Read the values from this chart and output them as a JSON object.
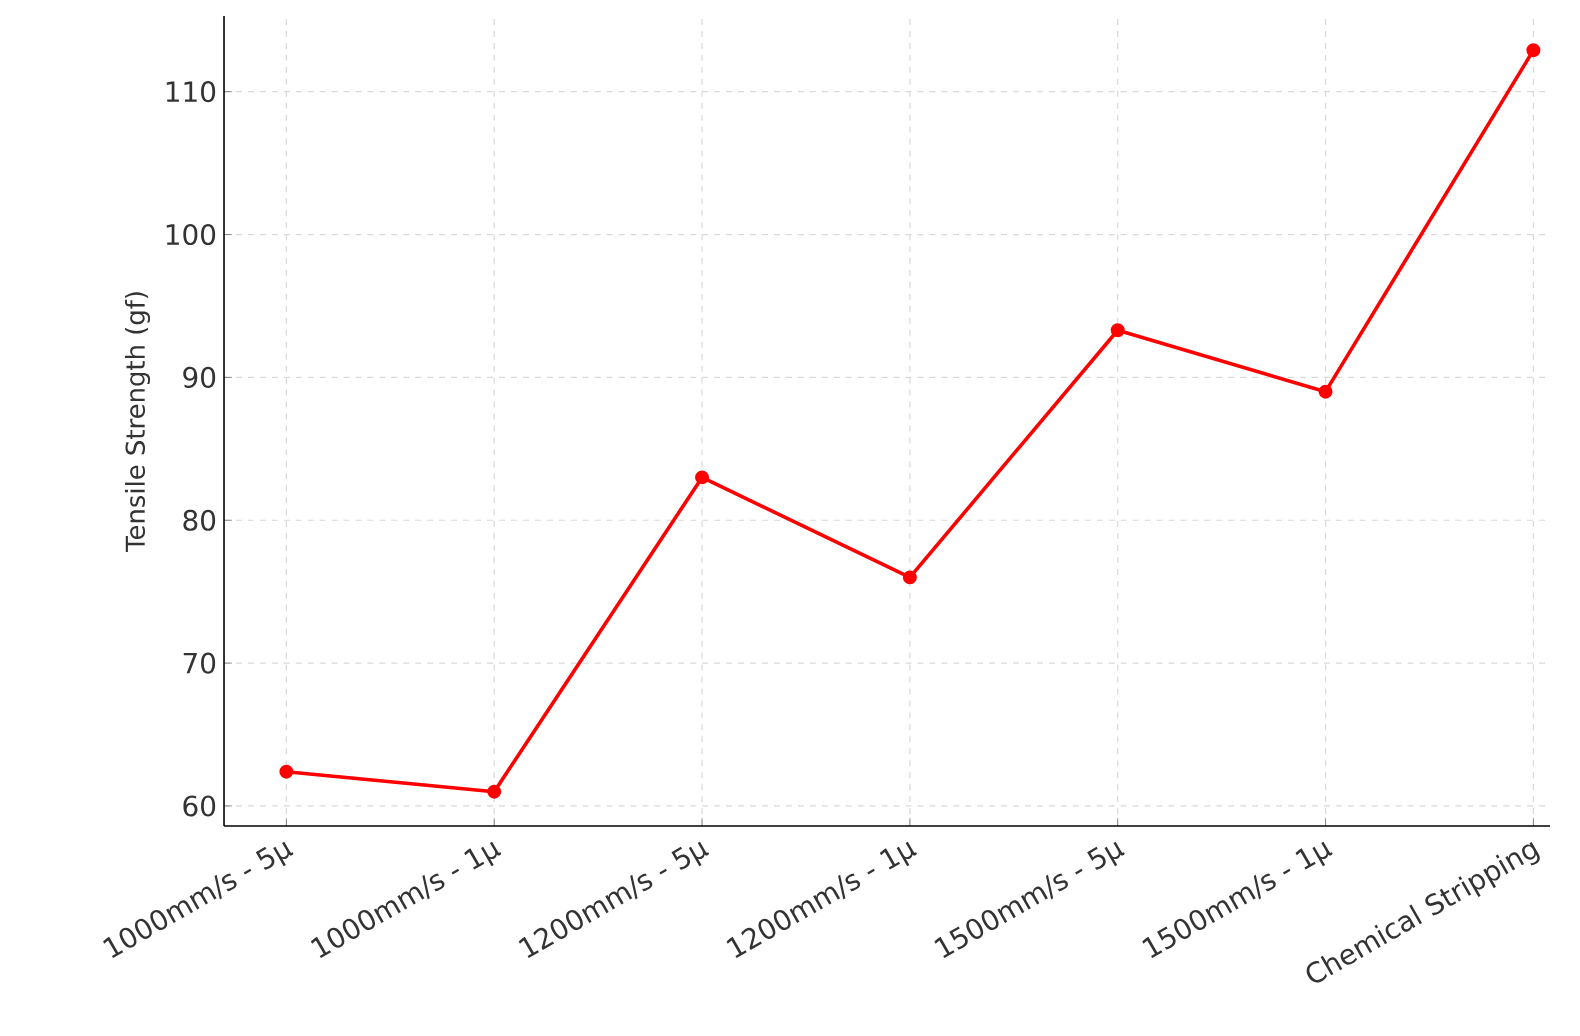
{
  "chart_data": {
    "type": "line",
    "ylabel": "Tensile Strength (gf)",
    "categories": [
      "1000mm/s - 5μ",
      "1000mm/s - 1μ",
      "1200mm/s - 5μ",
      "1200mm/s - 1μ",
      "1500mm/s - 5μ",
      "1500mm/s - 1μ",
      "Chemical Stripping"
    ],
    "series": [
      {
        "color": "#ff0000",
        "values": [
          62.4,
          61.0,
          83.0,
          76.0,
          93.3,
          89.0,
          112.9
        ]
      }
    ],
    "ylim": [
      58.6,
      115.3
    ],
    "yticks": [
      60,
      70,
      80,
      90,
      100,
      110
    ],
    "grid": true,
    "marker": "circle",
    "line_style": "solid"
  }
}
